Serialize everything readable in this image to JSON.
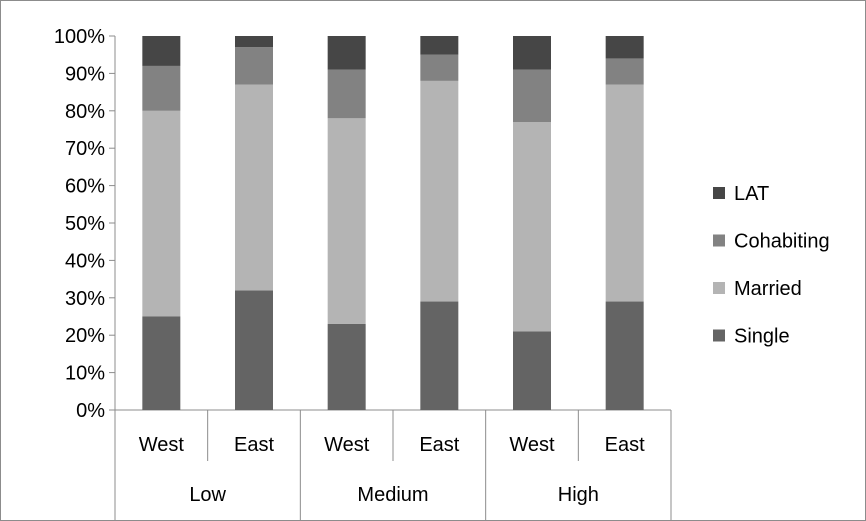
{
  "chart_data": {
    "type": "bar",
    "stacked": true,
    "normalized": true,
    "title": "",
    "xlabel": "",
    "ylabel": "",
    "ylim": [
      0,
      100
    ],
    "yticks": [
      "0%",
      "10%",
      "20%",
      "30%",
      "40%",
      "50%",
      "60%",
      "70%",
      "80%",
      "90%",
      "100%"
    ],
    "categories": [
      "West",
      "East",
      "West",
      "East",
      "West",
      "East"
    ],
    "groups": [
      {
        "label": "Low",
        "span": 2
      },
      {
        "label": "Medium",
        "span": 2
      },
      {
        "label": "High",
        "span": 2
      }
    ],
    "series": [
      {
        "name": "Single",
        "color": "#646464",
        "values": [
          25,
          32,
          23,
          29,
          21,
          29
        ]
      },
      {
        "name": "Married",
        "color": "#b4b4b4",
        "values": [
          55,
          55,
          55,
          59,
          56,
          58
        ]
      },
      {
        "name": "Cohabiting",
        "color": "#828282",
        "values": [
          12,
          10,
          13,
          7,
          14,
          7
        ]
      },
      {
        "name": "LAT",
        "color": "#464646",
        "values": [
          8,
          3,
          9,
          5,
          9,
          6
        ]
      }
    ],
    "legend_order": [
      "LAT",
      "Cohabiting",
      "Married",
      "Single"
    ],
    "legend_position": "right",
    "grid": false
  }
}
